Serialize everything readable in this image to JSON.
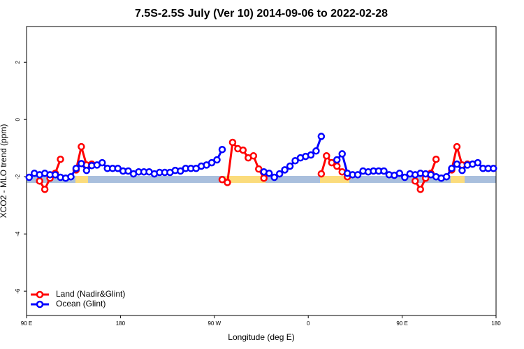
{
  "chart_data": {
    "type": "line",
    "title": "7.5S-2.5S July (Ver 10)   2014-09-06 to 2022-02-28",
    "x_label": "Longitude (deg E)",
    "y_label": "XCO2 - MLO trend (ppm)",
    "xlim": [
      90,
      540
    ],
    "ylim": [
      -6.85,
      3.25
    ],
    "xticks": [
      {
        "value": 90,
        "label": "90 E"
      },
      180,
      {
        "value": 270,
        "label": "90 W"
      },
      {
        "value": 360,
        "label": "0"
      },
      {
        "value": 450,
        "label": "90 E"
      },
      {
        "value": 540,
        "label": "180"
      }
    ],
    "yticks": [
      2,
      0,
      -2,
      -4,
      -6
    ],
    "legend": "lower left",
    "x": [
      92.5,
      97.5,
      102.5,
      107.5,
      112.5,
      117.5,
      122.5,
      127.5,
      132.5,
      137.5,
      142.5,
      147.5,
      152.5,
      157.5,
      162.5,
      167.5,
      172.5,
      177.5,
      182.5,
      187.5,
      192.5,
      197.5,
      202.5,
      207.5,
      212.5,
      217.5,
      222.5,
      227.5,
      232.5,
      237.5,
      242.5,
      247.5,
      252.5,
      257.5,
      262.5,
      267.5,
      272.5,
      277.5,
      282.5,
      287.5,
      292.5,
      297.5,
      302.5,
      307.5,
      312.5,
      317.5,
      322.5,
      327.5,
      332.5,
      337.5,
      342.5,
      347.5,
      352.5,
      357.5,
      362.5,
      367.5,
      372.5,
      377.5,
      382.5,
      387.5,
      392.5,
      397.5,
      402.5,
      407.5,
      412.5,
      417.5,
      422.5,
      427.5,
      432.5,
      437.5,
      442.5,
      447.5,
      452.5,
      457.5,
      462.5,
      467.5,
      472.5,
      477.5,
      482.5,
      487.5,
      492.5,
      497.5,
      502.5,
      507.5,
      512.5,
      517.5,
      522.5,
      527.5,
      532.5,
      537.5
    ],
    "series": [
      {
        "name": "Land (Nadir&Glint)",
        "color": "#ff0000",
        "values": [
          null,
          null,
          -2.15,
          -2.44,
          -2.05,
          -1.88,
          -1.39,
          null,
          null,
          -1.76,
          -0.95,
          -1.59,
          -1.56,
          null,
          null,
          null,
          null,
          null,
          null,
          null,
          null,
          null,
          null,
          null,
          null,
          null,
          null,
          null,
          null,
          null,
          null,
          null,
          null,
          null,
          null,
          null,
          null,
          -2.1,
          -2.2,
          -0.8,
          -1.02,
          -1.07,
          -1.34,
          -1.27,
          -1.73,
          -2.05,
          null,
          null,
          null,
          null,
          null,
          null,
          null,
          null,
          null,
          null,
          -1.9,
          -1.27,
          -1.51,
          -1.63,
          -1.83,
          -2.0,
          null,
          null,
          null,
          null,
          null,
          null,
          null,
          null,
          null,
          null,
          null,
          null,
          -2.15,
          -2.44,
          -2.05,
          -1.88,
          -1.39,
          null,
          null,
          -1.76,
          -0.95,
          -1.59,
          -1.56,
          null,
          null,
          null,
          null,
          null
        ]
      },
      {
        "name": "Ocean (Glint)",
        "color": "#0000ff",
        "values": [
          -2.02,
          -1.88,
          -1.93,
          -1.88,
          -1.93,
          -1.93,
          -2.02,
          -2.05,
          -2.0,
          -1.71,
          -1.54,
          -1.78,
          -1.61,
          -1.59,
          -1.51,
          -1.71,
          -1.71,
          -1.71,
          -1.8,
          -1.8,
          -1.9,
          -1.83,
          -1.83,
          -1.83,
          -1.9,
          -1.85,
          -1.85,
          -1.85,
          -1.78,
          -1.8,
          -1.71,
          -1.71,
          -1.71,
          -1.63,
          -1.59,
          -1.51,
          -1.41,
          -1.05,
          null,
          null,
          null,
          null,
          null,
          null,
          null,
          -1.83,
          -1.88,
          -2.02,
          -1.9,
          -1.76,
          -1.63,
          -1.44,
          -1.34,
          -1.29,
          -1.24,
          -1.1,
          -0.59,
          null,
          null,
          -1.41,
          -1.2,
          -1.88,
          -1.93,
          -1.93,
          -1.8,
          -1.83,
          -1.8,
          -1.8,
          -1.8,
          -1.93,
          -1.95,
          -1.88,
          -2.02,
          -1.9,
          -1.93,
          -1.88,
          -1.9,
          -1.93,
          -2.0,
          -2.05,
          -2.0,
          -1.71,
          -1.56,
          -1.78,
          -1.59,
          -1.56,
          -1.51,
          -1.71,
          -1.71,
          -1.71
        ]
      }
    ]
  }
}
